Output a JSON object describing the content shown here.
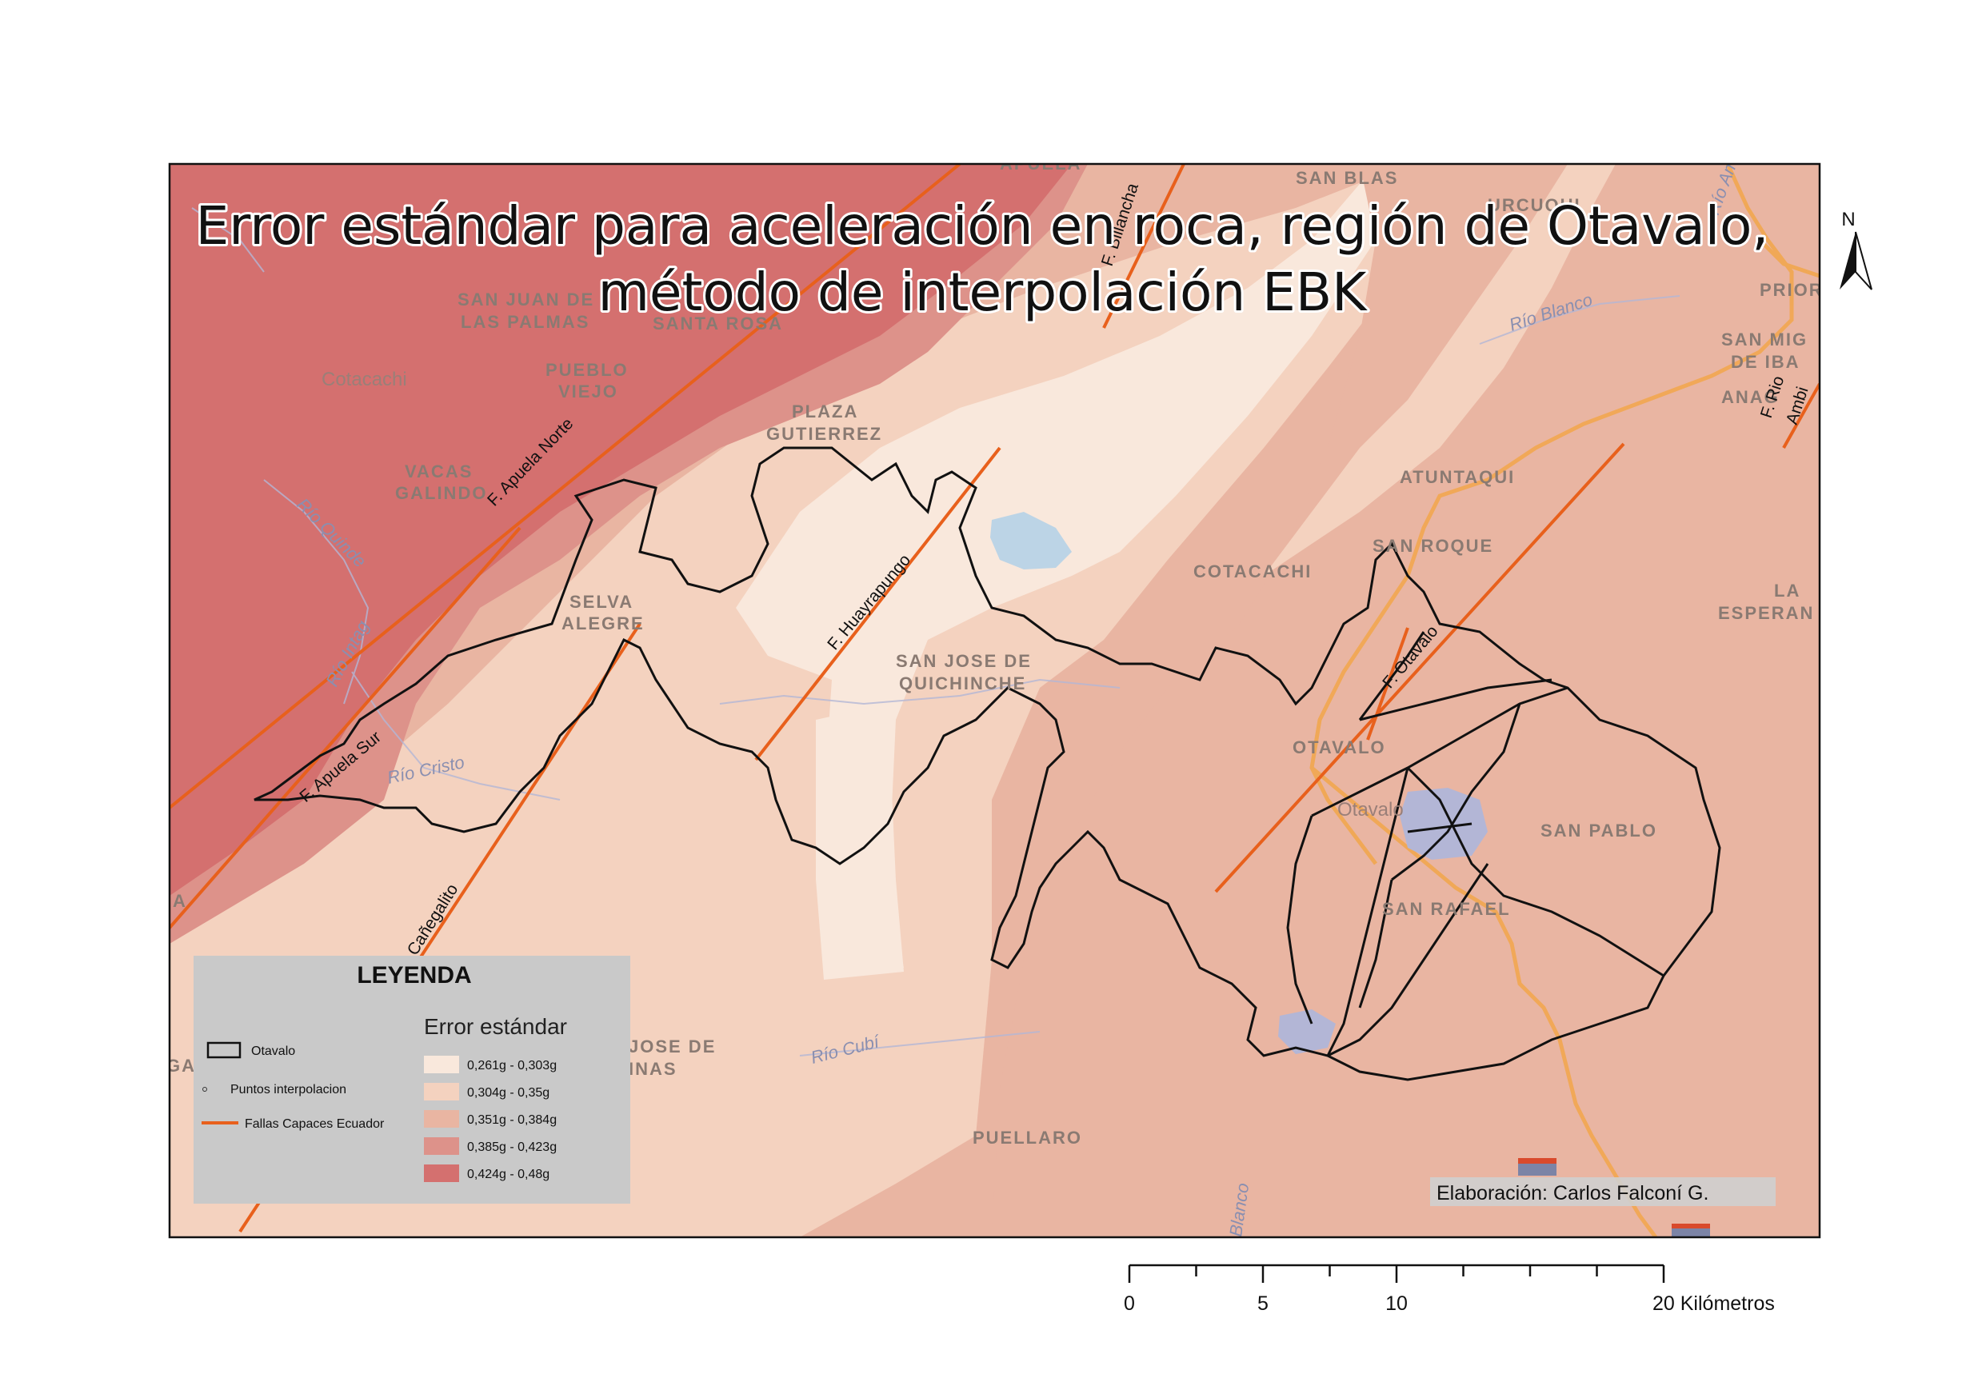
{
  "title": {
    "line1": "Error estándar para aceleración en roca, región de Otavalo,",
    "line2": "método de interpolación EBK"
  },
  "north_arrow": {
    "label": "N"
  },
  "legend": {
    "title": "LEYENDA",
    "subtitle": "Error estándar",
    "layers": [
      {
        "label": "Otavalo",
        "symbol": "outline-box"
      },
      {
        "label": "Puntos interpolacion",
        "symbol": "dot"
      },
      {
        "label": "Fallas Capaces Ecuador",
        "symbol": "orange-line",
        "color": "#e8601c"
      }
    ],
    "classes": [
      {
        "label": "0,261g - 0,303g",
        "color": "#f9e8dc"
      },
      {
        "label": "0,304g - 0,35g",
        "color": "#f4d2bf"
      },
      {
        "label": "0,351g - 0,384g",
        "color": "#e9b5a2"
      },
      {
        "label": "0,385g - 0,423g",
        "color": "#dd928a"
      },
      {
        "label": "0,424g - 0,48g",
        "color": "#d4706f"
      }
    ]
  },
  "credit": "Elaboración: Carlos Falconí G.",
  "scale_bar": {
    "ticks": [
      "0",
      "5",
      "10",
      "20 Kilómetros"
    ]
  },
  "places": {
    "apuela": "APUELA",
    "san_blas": "SAN BLAS",
    "urcuqui": "URCUQUI",
    "san_juan_1": "SAN JUAN DE",
    "san_juan_2": "LAS PALMAS",
    "santa_rosa": "SANTA ROSA",
    "cotacachi_area": "Cotacachi",
    "pueblo_viejo_1": "PUEBLO",
    "pueblo_viejo_2": "VIEJO",
    "plaza_1": "PLAZA",
    "plaza_2": "GUTIERREZ",
    "vacas_1": "VACAS",
    "vacas_2": "GALINDO",
    "priora": "PRIORA",
    "san_miguel_1": "SAN MIG",
    "san_miguel_2": "DE IBA",
    "anaco": "ANAG",
    "atuntaqui": "ATUNTAQUI",
    "san_roque": "SAN ROQUE",
    "cotacachi_town": "COTACACHI",
    "la_esperanza_1": "LA",
    "la_esperanza_2": "ESPERAN",
    "selva_1": "SELVA",
    "selva_2": "ALEGRE",
    "quichinche_1": "SAN JOSE DE",
    "quichinche_2": "QUICHINCHE",
    "otavalo_town": "OTAVALO",
    "otavalo_area": "Otavalo",
    "san_pablo": "SAN PABLO",
    "san_rafael": "SAN RAFAEL",
    "jose_de_1": "JOSE DE",
    "jose_de_2": "INAS",
    "puellaro": "PUELLARO",
    "edge_a": "A",
    "edge_ga": "GA"
  },
  "rivers": {
    "quinde": "Río Quinde",
    "intag": "Río Intag",
    "cristo": "Río Cristo",
    "blanco": "Río Blanco",
    "cubi": "Río Cubí",
    "ambi_edge": "Río Am",
    "blanco_s": "Blanco"
  },
  "faults": {
    "apuela_norte": "F. Apuela Norte",
    "apuela_sur": "F. Apuela Sur",
    "huayrapungo": "F. Huayrapungo",
    "otavalo": "F. Otavalo",
    "billancha": "F. Billancha",
    "rio_ambi_1": "F. Rio",
    "rio_ambi_2": "Ambi",
    "canegalito": "Cañegalito"
  }
}
